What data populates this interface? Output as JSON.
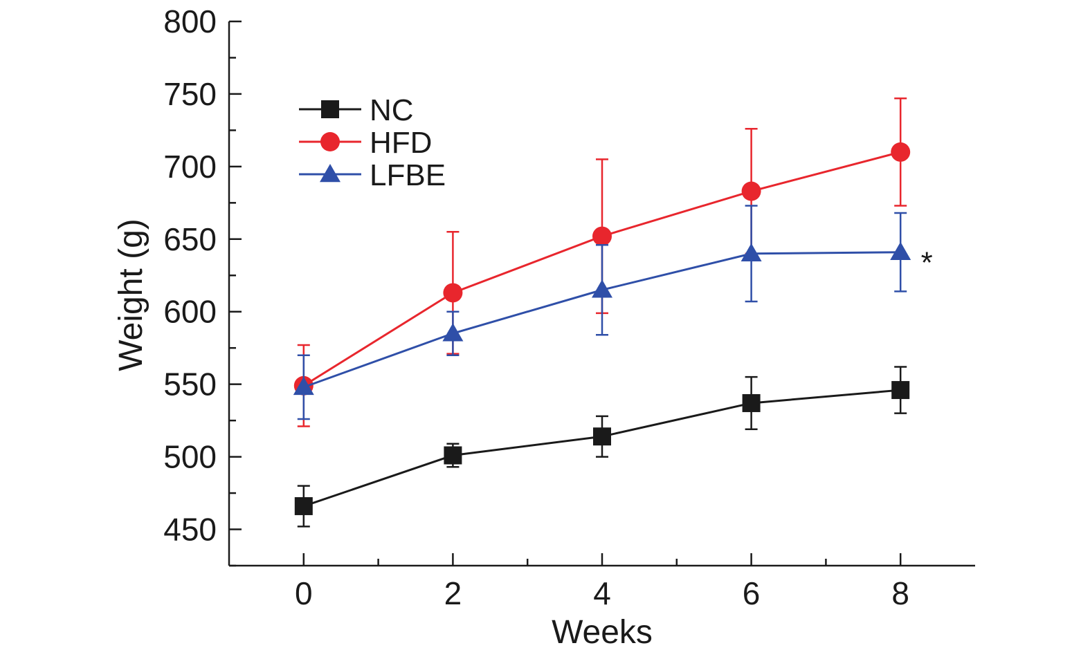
{
  "chart_data": {
    "type": "line",
    "title": "",
    "xlabel": "Weeks",
    "ylabel": "Weight (g)",
    "x": [
      0,
      2,
      4,
      6,
      8
    ],
    "x_ticks": [
      0,
      2,
      4,
      6,
      8
    ],
    "x_tick_labels": [
      "0",
      "2",
      "4",
      "6",
      "8"
    ],
    "y_ticks": [
      450,
      500,
      550,
      600,
      650,
      700,
      750,
      800
    ],
    "y_tick_labels": [
      "450",
      "500",
      "550",
      "600",
      "650",
      "700",
      "750",
      "800"
    ],
    "xlim": [
      -1,
      9
    ],
    "ylim": [
      425,
      800
    ],
    "grid": false,
    "legend_position": "top-left",
    "series": [
      {
        "name": "NC",
        "color": "#1a1a1a",
        "marker": "square",
        "values": [
          466,
          501,
          514,
          537,
          546
        ],
        "error": [
          14,
          8,
          14,
          18,
          16
        ]
      },
      {
        "name": "HFD",
        "color": "#e8262d",
        "marker": "circle",
        "values": [
          549,
          613,
          652,
          683,
          710
        ],
        "error": [
          28,
          42,
          53,
          43,
          37
        ]
      },
      {
        "name": "LFBE",
        "color": "#2f4fa8",
        "marker": "triangle",
        "values": [
          548,
          585,
          615,
          640,
          641
        ],
        "error": [
          22,
          15,
          31,
          33,
          27
        ]
      }
    ],
    "annotations": [
      {
        "text": "*",
        "series": "LFBE",
        "x": 8
      }
    ]
  }
}
